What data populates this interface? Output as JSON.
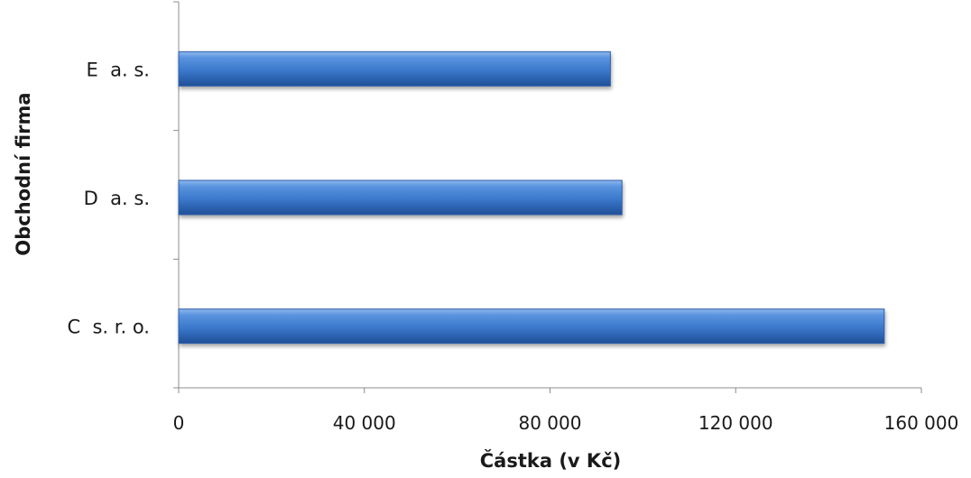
{
  "chart_data": {
    "type": "bar",
    "orientation": "horizontal",
    "categories": [
      "C  s. r. o.",
      "D  a. s.",
      "E  a. s."
    ],
    "values": [
      152000,
      95500,
      93000
    ],
    "xlabel": "Částka (v Kč)",
    "ylabel": "Obchodní firma",
    "xlim": [
      0,
      160000
    ],
    "xticks": [
      0,
      40000,
      80000,
      120000,
      160000
    ],
    "xtick_labels": [
      "0",
      "40 000",
      "80 000",
      "120 000",
      "160 000"
    ],
    "grid": false,
    "legend": "none",
    "bar_color": "#3f7fd0"
  }
}
